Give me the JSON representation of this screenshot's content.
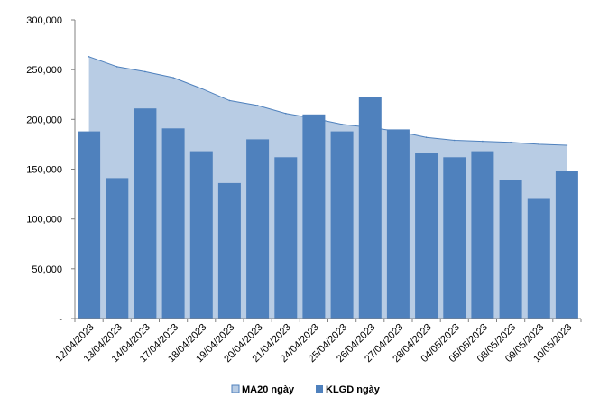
{
  "chart_data": {
    "type": "bar",
    "categories": [
      "12/04/2023",
      "13/04/2023",
      "14/04/2023",
      "17/04/2023",
      "18/04/2023",
      "19/04/2023",
      "20/04/2023",
      "21/04/2023",
      "24/04/2023",
      "25/04/2023",
      "26/04/2023",
      "27/04/2023",
      "28/04/2023",
      "04/05/2023",
      "05/05/2023",
      "08/05/2023",
      "09/05/2023",
      "10/05/2023"
    ],
    "series": [
      {
        "name": "MA20 ngày",
        "kind": "area",
        "color": "#b8cce4",
        "line_color": "#4f81bd",
        "values": [
          263000,
          253000,
          248000,
          242000,
          231000,
          219000,
          214000,
          206000,
          201000,
          195000,
          192000,
          188000,
          182000,
          179000,
          178000,
          177000,
          175000,
          174000
        ]
      },
      {
        "name": "KLGD ngày",
        "kind": "bar",
        "color": "#4f81bd",
        "values": [
          188000,
          141000,
          211000,
          191000,
          168000,
          136000,
          180000,
          162000,
          205000,
          188000,
          223000,
          190000,
          166000,
          162000,
          168000,
          139000,
          121000,
          148000
        ]
      }
    ],
    "yticks": [
      "-",
      "50,000",
      "100,000",
      "150,000",
      "200,000",
      "250,000",
      "300,000"
    ],
    "ylim": [
      0,
      300000
    ],
    "title": "",
    "xlabel": "",
    "ylabel": "",
    "grid": false,
    "legend": "bottom"
  }
}
